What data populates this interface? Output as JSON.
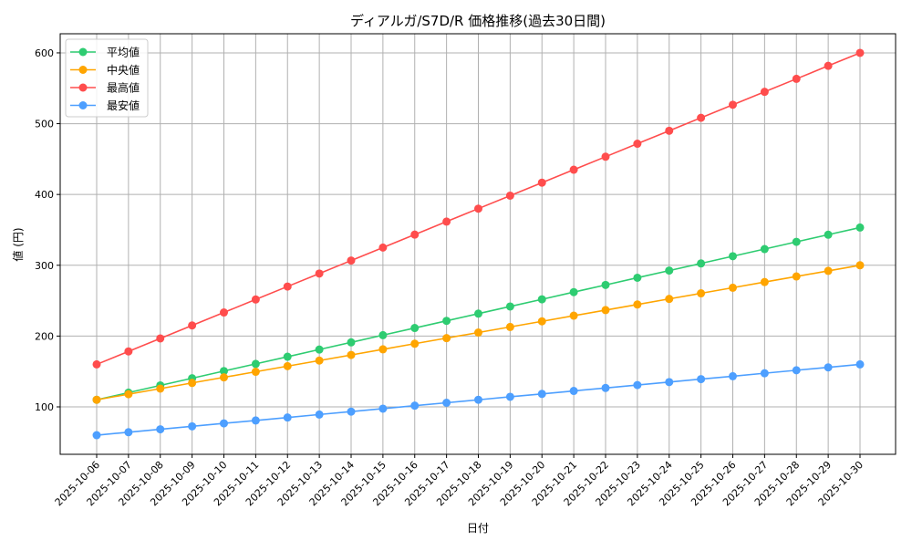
{
  "chart_data": {
    "type": "line",
    "title": "ディアルガ/S7D/R 価格推移(過去30日間)",
    "xlabel": "日付",
    "ylabel": "値 (円)",
    "ylim": [
      33,
      627
    ],
    "yticks": [
      100,
      200,
      300,
      400,
      500,
      600
    ],
    "grid": true,
    "legend_position": "top-left",
    "categories": [
      "2025-10-06",
      "2025-10-07",
      "2025-10-08",
      "2025-10-09",
      "2025-10-10",
      "2025-10-11",
      "2025-10-12",
      "2025-10-13",
      "2025-10-14",
      "2025-10-15",
      "2025-10-16",
      "2025-10-17",
      "2025-10-18",
      "2025-10-19",
      "2025-10-20",
      "2025-10-21",
      "2025-10-22",
      "2025-10-23",
      "2025-10-24",
      "2025-10-25",
      "2025-10-26",
      "2025-10-27",
      "2025-10-28",
      "2025-10-29",
      "2025-10-30"
    ],
    "series": [
      {
        "name": "平均値",
        "color": "#2ecc71",
        "values": [
          110,
          120.1,
          130.3,
          140.4,
          150.6,
          160.7,
          170.8,
          181,
          191.1,
          201.3,
          211.4,
          221.5,
          231.7,
          241.8,
          251.9,
          262.1,
          272.2,
          282.4,
          292.5,
          302.6,
          312.8,
          322.9,
          333.1,
          343.2,
          353.3
        ]
      },
      {
        "name": "中央値",
        "color": "#ffa500",
        "values": [
          110,
          117.9,
          125.8,
          133.8,
          141.7,
          149.6,
          157.5,
          165.4,
          173.3,
          181.3,
          189.2,
          197.1,
          205,
          212.9,
          220.8,
          228.8,
          236.7,
          244.6,
          252.5,
          260.4,
          268.3,
          276.3,
          284.2,
          292.1,
          300
        ]
      },
      {
        "name": "最高値",
        "color": "#ff4d4d",
        "values": [
          160,
          178.3,
          196.7,
          215,
          233.3,
          251.7,
          270,
          288.3,
          306.7,
          325,
          343.3,
          361.7,
          380,
          398.3,
          416.7,
          435,
          453.3,
          471.7,
          490,
          508.3,
          526.7,
          545,
          563.3,
          581.7,
          600
        ]
      },
      {
        "name": "最安値",
        "color": "#4d9fff",
        "values": [
          60,
          64.2,
          68.3,
          72.5,
          76.7,
          80.8,
          85,
          89.2,
          93.3,
          97.5,
          101.7,
          105.8,
          110,
          114.2,
          118.3,
          122.5,
          126.7,
          130.8,
          135,
          139.2,
          143.3,
          147.5,
          151.7,
          155.8,
          160
        ]
      }
    ]
  }
}
